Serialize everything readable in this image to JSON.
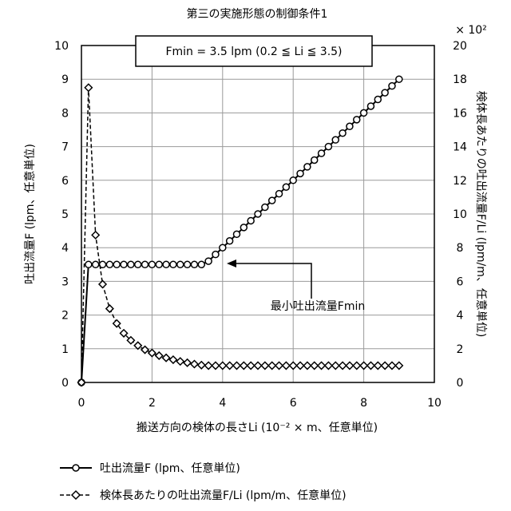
{
  "chart_data": {
    "type": "line",
    "title": "第三の実施形態の制御条件1",
    "xlabel": "搬送方向の検体の長さLi (10⁻² × m、任意単位)",
    "ylabel_left": "吐出流量F (lpm、任意単位)",
    "ylabel_right": "検体長あたりの吐出流量F/Li (lpm/m、任意単位)",
    "right_axis_multiplier": "× 10²",
    "xlim": [
      0,
      10
    ],
    "ylim_left": [
      0,
      10
    ],
    "ylim_right": [
      0,
      20
    ],
    "x_ticks": [
      "0",
      "2",
      "4",
      "6",
      "8",
      "10"
    ],
    "y_ticks_left": [
      "0",
      "1",
      "2",
      "3",
      "4",
      "5",
      "6",
      "7",
      "8",
      "9",
      "10"
    ],
    "y_ticks_right": [
      "0",
      "2",
      "4",
      "6",
      "8",
      "10",
      "12",
      "14",
      "16",
      "18",
      "20"
    ],
    "grid": true,
    "legend_placement": "bottom",
    "annotation_box": "Fmin = 3.5 lpm (0.2 ≦  Li ≦  3.5)",
    "annotation_arrow_label": "最小吐出流量Fmin",
    "series": [
      {
        "name": "吐出流量F (lpm、任意単位)",
        "axis": "left",
        "line_style": "solid",
        "marker": "circle",
        "x": [
          0,
          0.2,
          0.4,
          0.6,
          0.8,
          1.0,
          1.2,
          1.4,
          1.6,
          1.8,
          2.0,
          2.2,
          2.4,
          2.6,
          2.8,
          3.0,
          3.2,
          3.4,
          3.6,
          3.8,
          4.0,
          4.2,
          4.4,
          4.6,
          4.8,
          5.0,
          5.2,
          5.4,
          5.6,
          5.8,
          6.0,
          6.2,
          6.4,
          6.6,
          6.8,
          7.0,
          7.2,
          7.4,
          7.6,
          7.8,
          8.0,
          8.2,
          8.4,
          8.6,
          8.8,
          9.0
        ],
        "y": [
          0,
          3.5,
          3.5,
          3.5,
          3.5,
          3.5,
          3.5,
          3.5,
          3.5,
          3.5,
          3.5,
          3.5,
          3.5,
          3.5,
          3.5,
          3.5,
          3.5,
          3.5,
          3.6,
          3.8,
          4.0,
          4.2,
          4.4,
          4.6,
          4.8,
          5.0,
          5.2,
          5.4,
          5.6,
          5.8,
          6.0,
          6.2,
          6.4,
          6.6,
          6.8,
          7.0,
          7.2,
          7.4,
          7.6,
          7.8,
          8.0,
          8.2,
          8.4,
          8.6,
          8.8,
          9.0
        ]
      },
      {
        "name": "検体長あたりの吐出流量F/Li (lpm/m、任意単位)",
        "axis": "right",
        "line_style": "dashed",
        "marker": "diamond",
        "x": [
          0,
          0.2,
          0.4,
          0.6,
          0.8,
          1.0,
          1.2,
          1.4,
          1.6,
          1.8,
          2.0,
          2.2,
          2.4,
          2.6,
          2.8,
          3.0,
          3.2,
          3.4,
          3.6,
          3.8,
          4.0,
          4.2,
          4.4,
          4.6,
          4.8,
          5.0,
          5.2,
          5.4,
          5.6,
          5.8,
          6.0,
          6.2,
          6.4,
          6.6,
          6.8,
          7.0,
          7.2,
          7.4,
          7.6,
          7.8,
          8.0,
          8.2,
          8.4,
          8.6,
          8.8,
          9.0
        ],
        "y": [
          0,
          17.5,
          8.75,
          5.83,
          4.38,
          3.5,
          2.92,
          2.5,
          2.19,
          1.94,
          1.75,
          1.59,
          1.46,
          1.35,
          1.25,
          1.17,
          1.09,
          1.03,
          1.0,
          1.0,
          1.0,
          1.0,
          1.0,
          1.0,
          1.0,
          1.0,
          1.0,
          1.0,
          1.0,
          1.0,
          1.0,
          1.0,
          1.0,
          1.0,
          1.0,
          1.0,
          1.0,
          1.0,
          1.0,
          1.0,
          1.0,
          1.0,
          1.0,
          1.0,
          1.0,
          1.0
        ]
      }
    ]
  }
}
